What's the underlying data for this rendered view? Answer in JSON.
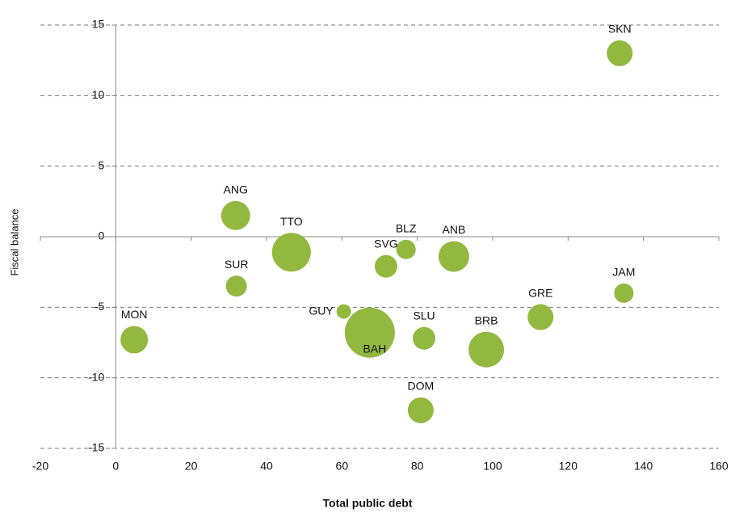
{
  "chart_data": {
    "type": "bubble",
    "x_label": "Total public debt",
    "y_label": "Fiscal balance",
    "categories": [
      "SKN",
      "ANG",
      "TTO",
      "BLZ",
      "ANB",
      "SVG",
      "SUR",
      "JAM",
      "GUY",
      "GRE",
      "MON",
      "BAH",
      "SLU",
      "BRB",
      "DOM"
    ],
    "x": [
      133.7,
      31.8,
      46.6,
      77,
      89.7,
      71.7,
      32,
      134.8,
      60.5,
      112.7,
      4.9,
      67.4,
      81.8,
      98.3,
      80.9
    ],
    "values": [
      13,
      1.5,
      -1.1,
      -0.9,
      -1.4,
      -2.1,
      -3.5,
      -4,
      -5.3,
      -5.7,
      -7.3,
      -6.8,
      -7.2,
      -8,
      -12.3
    ],
    "sizes": [
      256,
      324,
      576,
      144,
      361,
      196,
      169,
      144,
      81,
      256,
      289,
      961,
      196,
      484,
      256
    ],
    "color": "#92b83f",
    "xlim": [
      -20,
      160
    ],
    "xticks": [
      -20,
      0,
      20,
      40,
      60,
      80,
      100,
      120,
      140,
      160
    ],
    "ylim": [
      -15,
      15
    ],
    "yticks": [
      -15,
      -10,
      -5,
      0,
      5,
      10,
      15
    ],
    "grid": true
  }
}
